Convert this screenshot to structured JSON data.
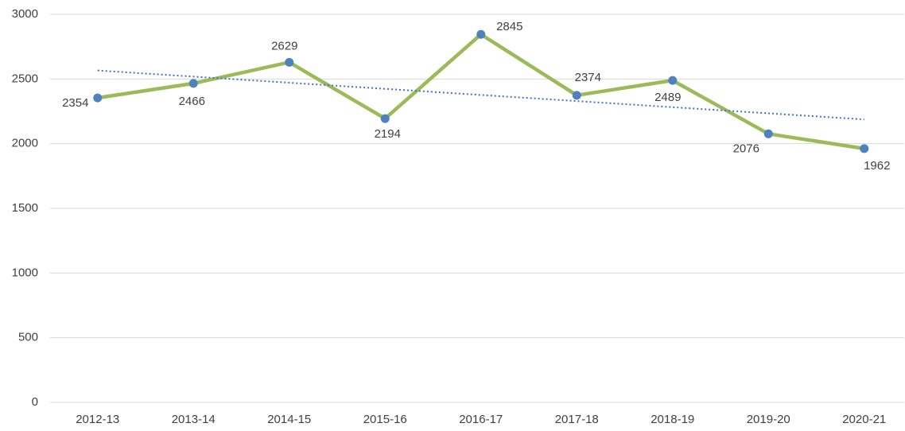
{
  "chart_data": {
    "type": "line",
    "categories": [
      "2012-13",
      "2013-14",
      "2014-15",
      "2015-16",
      "2016-17",
      "2017-18",
      "2018-19",
      "2019-20",
      "2020-21"
    ],
    "series": [
      {
        "color": "#9bbb59",
        "marker_color": "#4f81bd",
        "values": [
          2354,
          2466,
          2629,
          2194,
          2845,
          2374,
          2489,
          2076,
          1962
        ]
      }
    ],
    "trendline": "linear",
    "trendline_color": "#4472c4",
    "ylim": [
      0,
      3000
    ],
    "yticks": [
      0,
      500,
      1000,
      1500,
      2000,
      2500,
      3000
    ],
    "grid": true
  }
}
